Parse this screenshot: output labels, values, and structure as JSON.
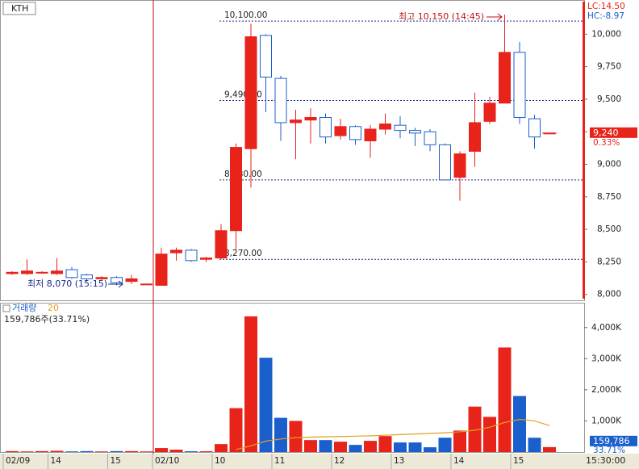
{
  "chart_data": {
    "type": "candlestick",
    "title": "KTH",
    "categories": [
      "02/09",
      null,
      null,
      "14",
      null,
      null,
      null,
      "15",
      null,
      null,
      "02/10",
      null,
      null,
      null,
      "10",
      null,
      null,
      null,
      "11",
      null,
      null,
      null,
      "12",
      null,
      null,
      null,
      "13",
      null,
      null,
      null,
      "14",
      null,
      null,
      null,
      "15",
      null,
      null
    ],
    "x_end_label": "15:30:00",
    "open": [
      8160,
      8160,
      8170,
      8160,
      8190,
      8150,
      8120,
      8130,
      8100,
      8080,
      8070,
      8320,
      8340,
      8270,
      8280,
      8490,
      9120,
      9990,
      9660,
      9320,
      9340,
      9360,
      9220,
      9290,
      9180,
      9270,
      9300,
      9260,
      9250,
      9150,
      8900,
      9100,
      9330,
      9470,
      9860,
      9350,
      9240
    ],
    "high": [
      8180,
      8270,
      8180,
      8280,
      8210,
      8160,
      8140,
      8140,
      8150,
      8080,
      8360,
      8360,
      8350,
      8290,
      8540,
      9160,
      10080,
      10000,
      9680,
      9420,
      9430,
      9390,
      9350,
      9300,
      9300,
      9390,
      9370,
      9280,
      9270,
      9160,
      9100,
      9550,
      9520,
      10150,
      9940,
      9380,
      9240
    ],
    "low": [
      8150,
      8150,
      8160,
      8150,
      8120,
      8100,
      8110,
      8070,
      8080,
      8080,
      8070,
      8260,
      8250,
      8250,
      8270,
      8340,
      8820,
      9400,
      9180,
      9040,
      9160,
      9160,
      9190,
      9150,
      9050,
      9230,
      9200,
      9140,
      9100,
      8880,
      8720,
      8980,
      9310,
      9470,
      9310,
      9120,
      9240
    ],
    "close": [
      8170,
      8180,
      8170,
      8180,
      8130,
      8120,
      8130,
      8090,
      8120,
      8080,
      8310,
      8340,
      8260,
      8280,
      8490,
      9130,
      9980,
      9670,
      9320,
      9340,
      9360,
      9210,
      9290,
      9190,
      9270,
      9310,
      9260,
      9240,
      9150,
      8880,
      9080,
      9320,
      9470,
      9860,
      9360,
      9210,
      9240
    ],
    "up_color": "#e8231a",
    "down_color": "#1a5fcc",
    "ylim": [
      7955,
      10250
    ],
    "yticks": [
      {
        "value": 8000,
        "label": "8,000"
      },
      {
        "value": 8250,
        "label": "8,250"
      },
      {
        "value": 8500,
        "label": "8,500"
      },
      {
        "value": 8750,
        "label": "8,750"
      },
      {
        "value": 9000,
        "label": "9,000"
      },
      {
        "value": 9250,
        "label": "9,250"
      },
      {
        "value": 9500,
        "label": "9,500"
      },
      {
        "value": 9750,
        "label": "9,750"
      },
      {
        "value": 10000,
        "label": "10,000"
      }
    ],
    "levels": [
      {
        "value": 10100,
        "label": "10,100.00"
      },
      {
        "value": 9490,
        "label": "9,490.00"
      },
      {
        "value": 8880,
        "label": "8,880.00"
      },
      {
        "value": 8270,
        "label": "8,270.00"
      }
    ],
    "high_note": "최고 10,150 (14:45)",
    "low_note": "최저 8,070 (15:15)",
    "lc_label": "LC:14.50",
    "hc_label": "HC:-8.97",
    "last": {
      "value": 9240,
      "label": "9,240"
    },
    "change": "0.33%",
    "volume": {
      "label": "거래량",
      "ma_label": "20",
      "summary": "159,786주(33.71%)",
      "values": [
        30000,
        20000,
        30000,
        40000,
        20000,
        30000,
        20000,
        30000,
        30000,
        20000,
        128000,
        77000,
        25000,
        25000,
        256000,
        1410000,
        4360000,
        3030000,
        1100000,
        1000000,
        385000,
        385000,
        333000,
        230000,
        360000,
        513000,
        308000,
        308000,
        154000,
        460000,
        690000,
        1460000,
        1130000,
        3360000,
        1800000,
        460000,
        159786
      ],
      "ma": [
        null,
        null,
        null,
        null,
        null,
        null,
        null,
        null,
        null,
        null,
        null,
        null,
        null,
        null,
        null,
        80000,
        200000,
        350000,
        420000,
        460000,
        480000,
        490000,
        500000,
        510000,
        520000,
        540000,
        560000,
        580000,
        600000,
        620000,
        650000,
        700000,
        800000,
        950000,
        1050000,
        1000000,
        850000
      ],
      "ma_color": "#e0a020",
      "ylim": [
        0,
        4720000
      ],
      "yticks": [
        {
          "value": 1000000,
          "label": "1,000K"
        },
        {
          "value": 2000000,
          "label": "2,000K"
        },
        {
          "value": 3000000,
          "label": "3,000K"
        },
        {
          "value": 4000000,
          "label": "4,000K"
        }
      ],
      "last": {
        "value": 159786,
        "label": "159,786"
      },
      "change": "33.71%"
    }
  }
}
